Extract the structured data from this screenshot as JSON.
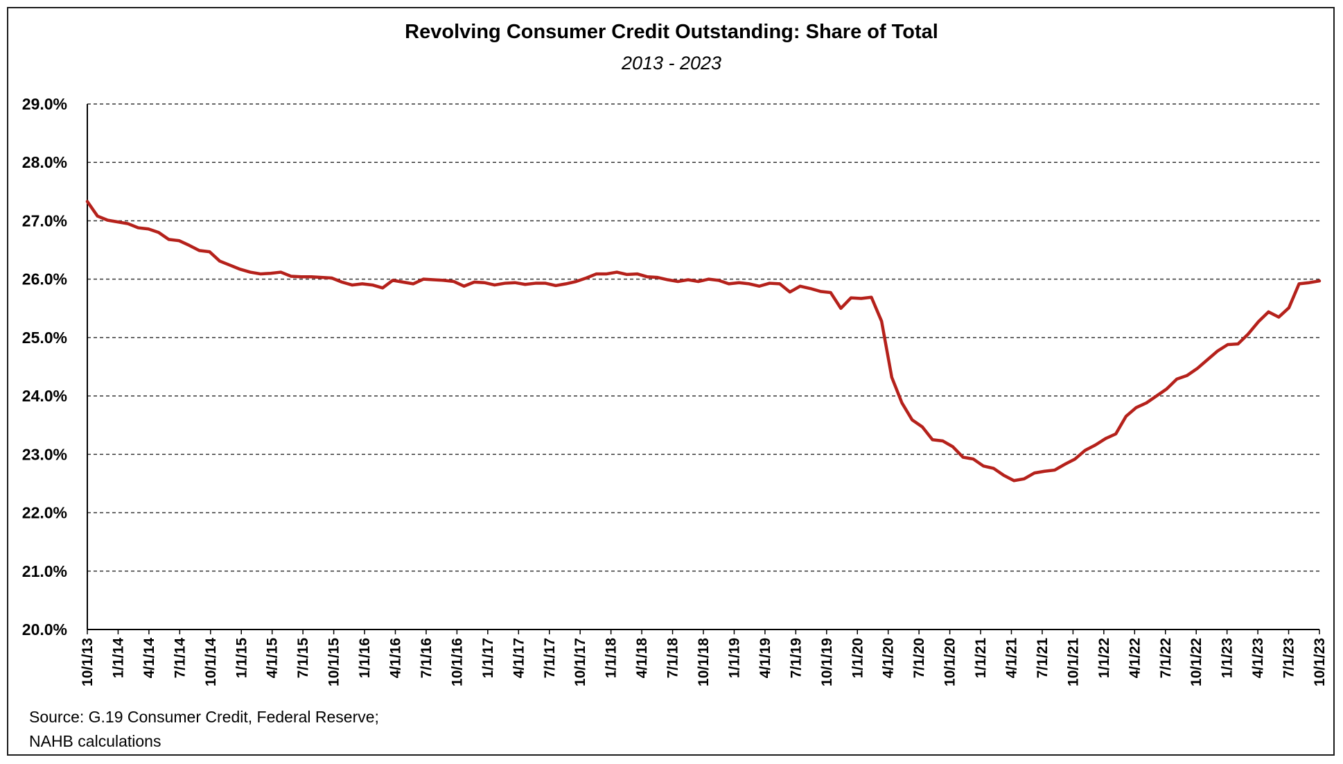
{
  "chart_data": {
    "type": "line",
    "title": "Revolving Consumer Credit Outstanding: Share of Total",
    "subtitle": "2013 - 2023",
    "source_lines": [
      "Source: G.19 Consumer Credit, Federal Reserve;",
      "NAHB calculations"
    ],
    "ylim": [
      20,
      29
    ],
    "y_ticks": [
      "20.0%",
      "21.0%",
      "22.0%",
      "23.0%",
      "24.0%",
      "25.0%",
      "26.0%",
      "27.0%",
      "28.0%",
      "29.0%"
    ],
    "grid": "horizontal dashed",
    "x_tick_labels": [
      "10/1/13",
      "1/1/14",
      "4/1/14",
      "7/1/14",
      "10/1/14",
      "1/1/15",
      "4/1/15",
      "7/1/15",
      "10/1/15",
      "1/1/16",
      "4/1/16",
      "7/1/16",
      "10/1/16",
      "1/1/17",
      "4/1/17",
      "7/1/17",
      "10/1/17",
      "1/1/18",
      "4/1/18",
      "7/1/18",
      "10/1/18",
      "1/1/19",
      "4/1/19",
      "7/1/19",
      "10/1/19",
      "1/1/20",
      "4/1/20",
      "7/1/20",
      "10/1/20",
      "1/1/21",
      "4/1/21",
      "7/1/21",
      "10/1/21",
      "1/1/22",
      "4/1/22",
      "7/1/22",
      "10/1/22",
      "1/1/23",
      "4/1/23",
      "7/1/23",
      "10/1/23"
    ],
    "x_start": "2013-10",
    "x_end": "2023-10",
    "line_color": "#b5211b",
    "series": [
      {
        "values": [
          27.33,
          27.08,
          27.01,
          26.98,
          26.95,
          26.88,
          26.86,
          26.8,
          26.68,
          26.66,
          26.58,
          26.49,
          26.47,
          26.31,
          26.24,
          26.17,
          26.12,
          26.09,
          26.1,
          26.12,
          26.05,
          26.04,
          26.04,
          26.03,
          26.02,
          25.95,
          25.9,
          25.92,
          25.9,
          25.85,
          25.98,
          25.95,
          25.92,
          26.0,
          25.99,
          25.98,
          25.96,
          25.88,
          25.95,
          25.94,
          25.9,
          25.93,
          25.94,
          25.91,
          25.93,
          25.93,
          25.89,
          25.92,
          25.96,
          26.02,
          26.09,
          26.09,
          26.12,
          26.08,
          26.09,
          26.04,
          26.03,
          25.99,
          25.96,
          25.99,
          25.96,
          26.0,
          25.98,
          25.92,
          25.94,
          25.92,
          25.88,
          25.93,
          25.92,
          25.78,
          25.88,
          25.84,
          25.79,
          25.77,
          25.5,
          25.68,
          25.67,
          25.69,
          25.28,
          24.32,
          23.88,
          23.59,
          23.47,
          23.25,
          23.23,
          23.13,
          22.95,
          22.92,
          22.8,
          22.76,
          22.64,
          22.55,
          22.58,
          22.68,
          22.71,
          22.73,
          22.83,
          22.92,
          23.07,
          23.16,
          23.27,
          23.35,
          23.65,
          23.8,
          23.88,
          24.0,
          24.12,
          24.29,
          24.35,
          24.47,
          24.62,
          24.77,
          24.88,
          24.89,
          25.06,
          25.27,
          25.44,
          25.35,
          25.51,
          25.92,
          25.94,
          25.97
        ]
      }
    ]
  }
}
